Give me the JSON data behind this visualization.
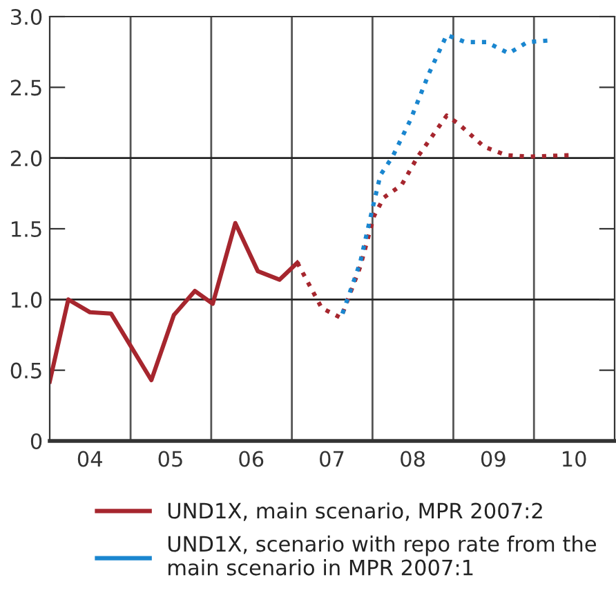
{
  "chart_data": {
    "type": "line",
    "series": [
      {
        "name": "UND1X, main scenario, MPR 2007:2",
        "color": "#a6262e",
        "line_style": "solid",
        "x": [
          "2004-01-01",
          "2004-03-25",
          "2004-07-01",
          "2004-10-05",
          "2005-04-05",
          "2005-07-16",
          "2005-10-19",
          "2006-01-08",
          "2006-04-20",
          "2006-07-31",
          "2006-11-06",
          "2007-01-26"
        ],
        "values": [
          0.42,
          1.0,
          0.91,
          0.9,
          0.43,
          0.89,
          1.06,
          0.97,
          1.54,
          1.2,
          1.14,
          1.26
        ]
      },
      {
        "color": "#a6262e",
        "line_style": "dotted",
        "x": [
          "2007-01-26",
          "2007-05-16",
          "2007-08-11",
          "2007-11-06",
          "2008-01-08",
          "2008-02-21",
          "2008-05-12",
          "2008-07-24",
          "2008-12-02",
          "2009-01-26",
          "2009-05-20",
          "2009-08-29",
          "2009-12-09",
          "2010-06-13"
        ],
        "values": [
          1.26,
          0.94,
          0.87,
          1.23,
          1.59,
          1.72,
          1.81,
          2.01,
          2.3,
          2.24,
          2.08,
          2.02,
          2.01,
          2.02
        ]
      },
      {
        "name": "UND1X, scenario with repo rate from the\nmain scenario in MPR 2007:1",
        "color": "#1a86cf",
        "line_style": "dotted",
        "x": [
          "2007-08-18",
          "2007-11-06",
          "2008-01-08",
          "2008-02-06",
          "2008-04-01",
          "2008-06-21",
          "2008-09-13",
          "2008-12-02",
          "2009-02-24",
          "2009-05-31",
          "2009-09-09",
          "2009-12-02",
          "2010-03-03"
        ],
        "values": [
          0.9,
          1.26,
          1.69,
          1.88,
          2.01,
          2.27,
          2.6,
          2.87,
          2.82,
          2.82,
          2.74,
          2.82,
          2.83
        ]
      }
    ],
    "xlim": [
      "2004-01-01",
      "2011-01-01"
    ],
    "xticks": [
      {
        "value": "2004-07-01",
        "label": "04"
      },
      {
        "value": "2005-01-01",
        "label": null
      },
      {
        "value": "2005-07-01",
        "label": "05"
      },
      {
        "value": "2006-01-01",
        "label": null
      },
      {
        "value": "2006-07-01",
        "label": "06"
      },
      {
        "value": "2007-01-01",
        "label": null
      },
      {
        "value": "2007-07-01",
        "label": "07"
      },
      {
        "value": "2008-01-01",
        "label": null
      },
      {
        "value": "2008-07-01",
        "label": "08"
      },
      {
        "value": "2009-01-01",
        "label": null
      },
      {
        "value": "2009-07-01",
        "label": "09"
      },
      {
        "value": "2010-01-01",
        "label": null
      },
      {
        "value": "2010-07-01",
        "label": "10"
      }
    ],
    "ylim": [
      0,
      3.0
    ],
    "yticks": [
      0,
      {
        "value": 0.5,
        "label": "0.5"
      },
      {
        "value": 1.0,
        "label": "1.0"
      },
      {
        "value": 1.5,
        "label": "1.5"
      },
      {
        "value": 2.0,
        "label": "2.0"
      },
      {
        "value": 2.5,
        "label": "2.5"
      },
      {
        "value": 3.0,
        "label": "3.0"
      }
    ],
    "grid": "x",
    "ref_lines": [
      {
        "axis": "y",
        "value": 1.0
      },
      {
        "axis": "y",
        "value": 2.0
      }
    ],
    "legend": "bottom"
  }
}
